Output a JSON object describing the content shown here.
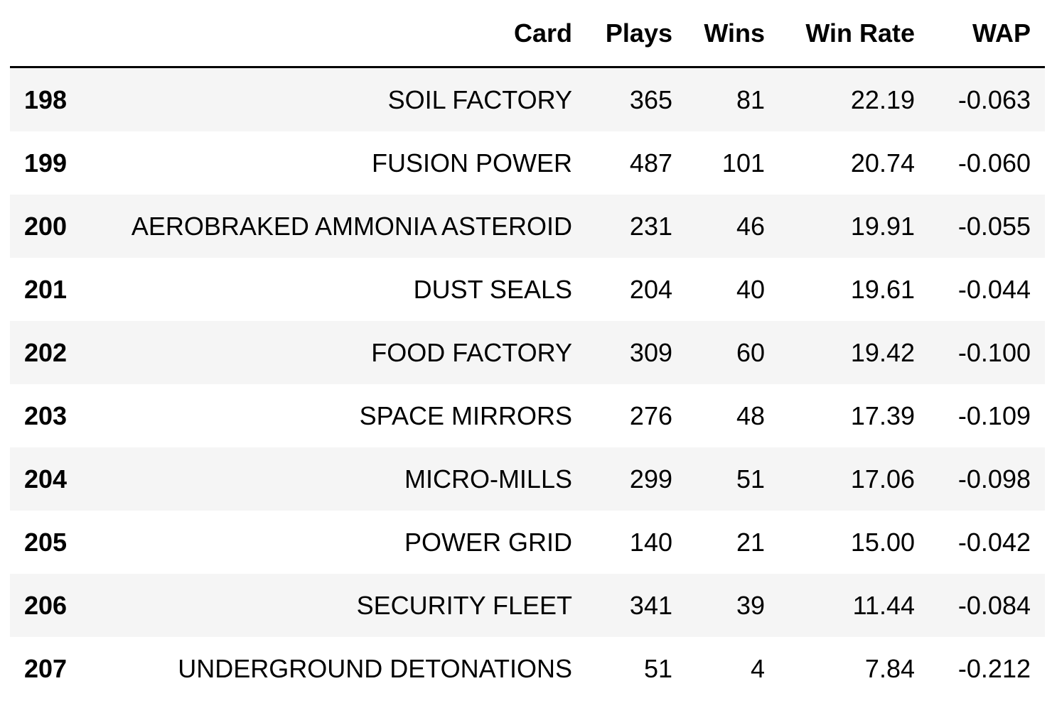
{
  "table": {
    "columns": [
      "Card",
      "Plays",
      "Wins",
      "Win Rate",
      "WAP"
    ],
    "rows": [
      {
        "index": "198",
        "card": "SOIL FACTORY",
        "plays": "365",
        "wins": "81",
        "win_rate": "22.19",
        "wap": "-0.063"
      },
      {
        "index": "199",
        "card": "FUSION POWER",
        "plays": "487",
        "wins": "101",
        "win_rate": "20.74",
        "wap": "-0.060"
      },
      {
        "index": "200",
        "card": "AEROBRAKED AMMONIA ASTEROID",
        "plays": "231",
        "wins": "46",
        "win_rate": "19.91",
        "wap": "-0.055"
      },
      {
        "index": "201",
        "card": "DUST SEALS",
        "plays": "204",
        "wins": "40",
        "win_rate": "19.61",
        "wap": "-0.044"
      },
      {
        "index": "202",
        "card": "FOOD FACTORY",
        "plays": "309",
        "wins": "60",
        "win_rate": "19.42",
        "wap": "-0.100"
      },
      {
        "index": "203",
        "card": "SPACE MIRRORS",
        "plays": "276",
        "wins": "48",
        "win_rate": "17.39",
        "wap": "-0.109"
      },
      {
        "index": "204",
        "card": "MICRO-MILLS",
        "plays": "299",
        "wins": "51",
        "win_rate": "17.06",
        "wap": "-0.098"
      },
      {
        "index": "205",
        "card": "POWER GRID",
        "plays": "140",
        "wins": "21",
        "win_rate": "15.00",
        "wap": "-0.042"
      },
      {
        "index": "206",
        "card": "SECURITY FLEET",
        "plays": "341",
        "wins": "39",
        "win_rate": "11.44",
        "wap": "-0.084"
      },
      {
        "index": "207",
        "card": "UNDERGROUND DETONATIONS",
        "plays": "51",
        "wins": "4",
        "win_rate": "7.84",
        "wap": "-0.212"
      }
    ]
  }
}
